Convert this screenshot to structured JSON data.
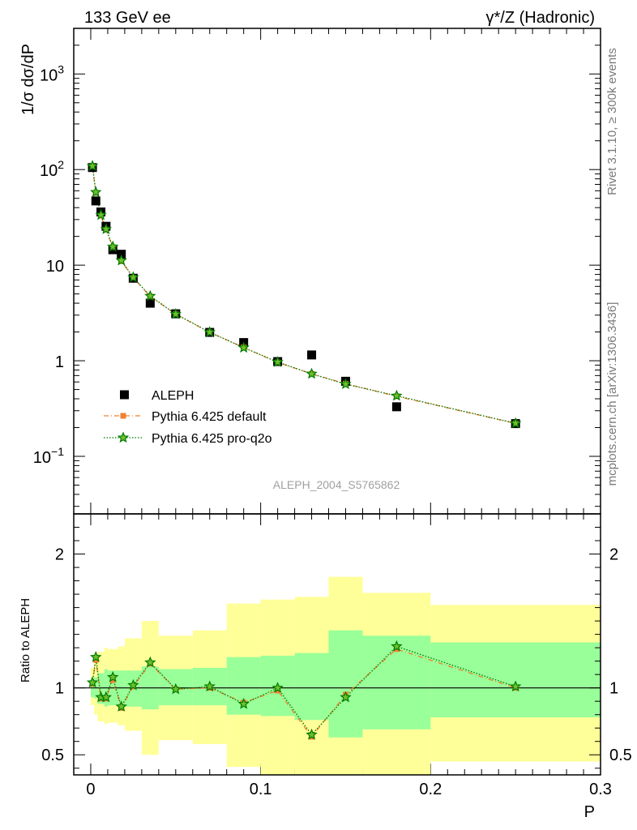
{
  "header": {
    "left": "133 GeV ee",
    "right": "γ*/Z (Hadronic)"
  },
  "side_text": {
    "rivet": "Rivet 3.1.10, ≥ 300k events",
    "mcplots": "mcplots.cern.ch [arXiv:1306.3436]"
  },
  "analysis_id": "ALEPH_2004_S5765862",
  "colors": {
    "data": "#000000",
    "pythia_default": "#f08030",
    "pythia_proq2o": "#007a00",
    "band_outer": "#ffff99",
    "band_inner": "#99ff99"
  },
  "chart_data": [
    {
      "type": "scatter",
      "panel": "main",
      "ylabel": "1/σ  dσ/dP",
      "yscale": "log",
      "xlim": [
        -0.01,
        0.3
      ],
      "ylim": [
        0.025,
        3000
      ],
      "yticks": [
        {
          "value": 1000,
          "base": "10",
          "exp": "3"
        },
        {
          "value": 100,
          "base": "10",
          "exp": "2"
        },
        {
          "value": 10,
          "base": "10",
          "exp": ""
        },
        {
          "value": 1,
          "base": "1",
          "exp": ""
        },
        {
          "value": 0.1,
          "base": "10",
          "exp": "−1"
        }
      ],
      "legend_position": "bottom-left",
      "series": [
        {
          "name": "ALEPH",
          "marker": "square",
          "x": [
            0.001,
            0.003,
            0.006,
            0.009,
            0.013,
            0.018,
            0.025,
            0.035,
            0.05,
            0.07,
            0.09,
            0.11,
            0.13,
            0.15,
            0.18,
            0.25
          ],
          "y": [
            105,
            47,
            36,
            25.5,
            14.5,
            13,
            7.3,
            4.0,
            3.1,
            1.98,
            1.55,
            0.98,
            1.15,
            0.61,
            0.33,
            0.22
          ]
        },
        {
          "name": "Pythia 6.425 default",
          "marker": "square-small",
          "line": "dashdot",
          "x": [
            0.001,
            0.003,
            0.006,
            0.009,
            0.013,
            0.018,
            0.025,
            0.035,
            0.05,
            0.07,
            0.09,
            0.11,
            0.13,
            0.15,
            0.18,
            0.25
          ],
          "y": [
            108,
            57,
            33,
            23.5,
            15.4,
            11,
            7.4,
            4.7,
            3.07,
            1.98,
            1.38,
            0.96,
            0.73,
            0.575,
            0.425,
            0.221
          ]
        },
        {
          "name": "Pythia 6.425 pro-q2o",
          "marker": "star",
          "line": "dotted",
          "x": [
            0.001,
            0.003,
            0.006,
            0.009,
            0.013,
            0.018,
            0.025,
            0.035,
            0.05,
            0.07,
            0.09,
            0.11,
            0.13,
            0.15,
            0.18,
            0.25
          ],
          "y": [
            109,
            58,
            33.5,
            23.8,
            15.6,
            11.2,
            7.45,
            4.75,
            3.08,
            1.99,
            1.37,
            0.97,
            0.73,
            0.57,
            0.43,
            0.222
          ]
        }
      ]
    },
    {
      "type": "scatter",
      "panel": "ratio",
      "ylabel": "Ratio to ALEPH",
      "xlabel": "P",
      "xlim": [
        -0.01,
        0.3
      ],
      "ylim": [
        0.35,
        2.3
      ],
      "yticks": [
        0.5,
        1,
        2
      ],
      "ytick_labels": [
        "0.5",
        "1",
        "2"
      ],
      "xticks": [
        0,
        0.1,
        0.2,
        0.3
      ],
      "xtick_labels": [
        "0",
        "0.1",
        "0.2",
        "0.3"
      ],
      "bands": {
        "edges": [
          0,
          0.002,
          0.004,
          0.008,
          0.01,
          0.016,
          0.02,
          0.03,
          0.04,
          0.06,
          0.08,
          0.1,
          0.12,
          0.14,
          0.16,
          0.2,
          0.3
        ],
        "inner_lo": [
          0.93,
          0.92,
          0.88,
          0.86,
          0.87,
          0.87,
          0.86,
          0.84,
          0.87,
          0.87,
          0.8,
          0.79,
          0.76,
          0.63,
          0.69,
          0.78
        ],
        "inner_hi": [
          1.07,
          1.08,
          1.11,
          1.14,
          1.13,
          1.13,
          1.13,
          1.16,
          1.14,
          1.15,
          1.23,
          1.24,
          1.26,
          1.43,
          1.39,
          1.34
        ],
        "outer_lo": [
          0.87,
          0.8,
          0.75,
          0.73,
          0.74,
          0.72,
          0.68,
          0.5,
          0.61,
          0.58,
          0.41,
          0.3,
          0.24,
          0.2,
          0.3,
          0.45
        ],
        "outer_hi": [
          1.15,
          1.21,
          1.27,
          1.3,
          1.29,
          1.31,
          1.37,
          1.5,
          1.39,
          1.43,
          1.63,
          1.66,
          1.68,
          1.83,
          1.71,
          1.62
        ]
      },
      "series": [
        {
          "name": "Pythia 6.425 default",
          "x": [
            0.001,
            0.003,
            0.006,
            0.009,
            0.013,
            0.018,
            0.025,
            0.035,
            0.05,
            0.07,
            0.09,
            0.11,
            0.13,
            0.15,
            0.18,
            0.25
          ],
          "y": [
            1.03,
            1.21,
            0.92,
            0.92,
            1.06,
            0.85,
            1.01,
            1.18,
            0.99,
            1.0,
            0.89,
            0.98,
            0.635,
            0.95,
            1.29,
            1.0
          ]
        },
        {
          "name": "Pythia 6.425 pro-q2o",
          "x": [
            0.001,
            0.003,
            0.006,
            0.009,
            0.013,
            0.018,
            0.025,
            0.035,
            0.05,
            0.07,
            0.09,
            0.11,
            0.13,
            0.15,
            0.18,
            0.25
          ],
          "y": [
            1.04,
            1.23,
            0.93,
            0.93,
            1.08,
            0.86,
            1.02,
            1.19,
            0.99,
            1.01,
            0.88,
            1.0,
            0.65,
            0.93,
            1.31,
            1.01
          ]
        }
      ]
    }
  ]
}
